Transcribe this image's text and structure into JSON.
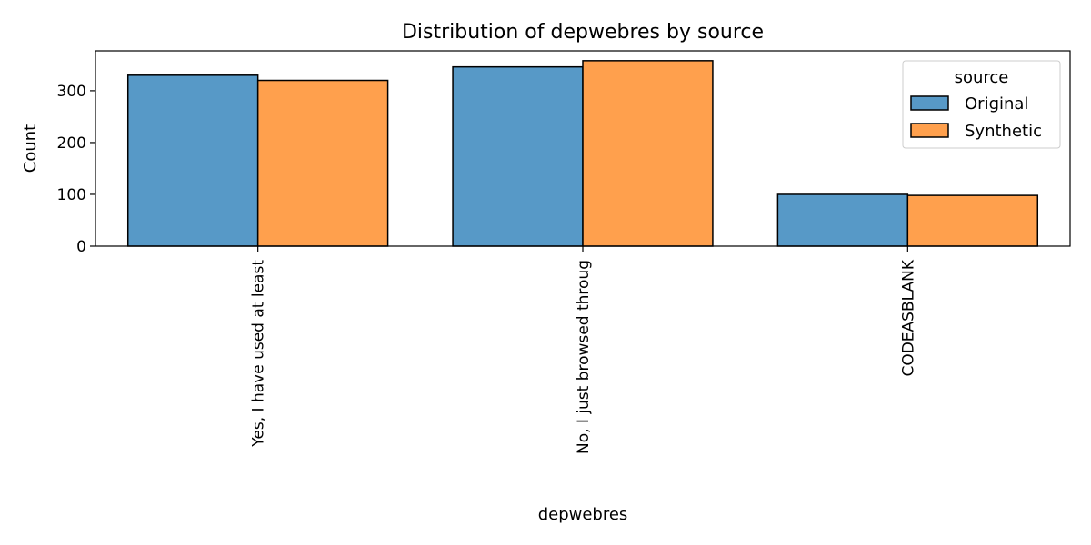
{
  "chart_data": {
    "type": "bar",
    "title": "Distribution of depwebres by source",
    "xlabel": "depwebres",
    "ylabel": "Count",
    "categories": [
      "Yes, I have used at least",
      "No, I just browsed throug",
      "CODEASBLANK"
    ],
    "series": [
      {
        "name": "Original",
        "color": "#5799c7",
        "values": [
          330,
          346,
          100
        ]
      },
      {
        "name": "Synthetic",
        "color": "#ffa04d",
        "values": [
          320,
          358,
          98
        ]
      }
    ],
    "ylim": [
      0,
      377
    ],
    "yticks": [
      0,
      100,
      200,
      300
    ],
    "grid": false,
    "legend": {
      "title": "source",
      "position": "top-right"
    }
  }
}
